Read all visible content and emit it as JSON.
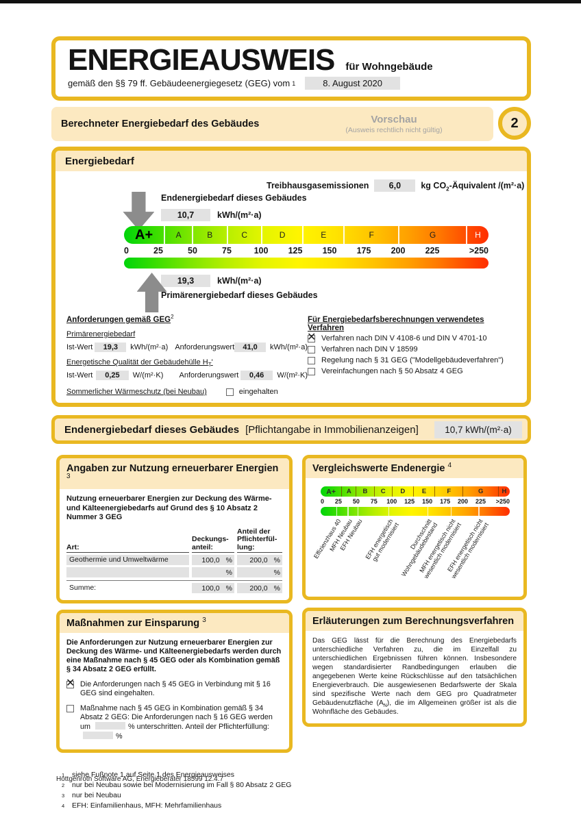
{
  "title": {
    "main": "ENERGIEAUSWEIS",
    "sub": "für Wohngebäude",
    "law_prefix": "gemäß den §§ 79 ff. Gebäudeenergiegesetz (GEG) vom",
    "law_footnote": "1",
    "date": "8. August 2020"
  },
  "preview": {
    "title": "Berechneter Energiebedarf des Gebäudes",
    "status": "Vorschau",
    "status_note": "(Ausweis rechtlich nicht gültig)",
    "page_number": "2"
  },
  "energy_section": {
    "header": "Energiebedarf",
    "ghg_label": "Treibhausgasemissionen",
    "ghg_value": "6,0",
    "ghg_unit_pre": "kg CO",
    "ghg_unit_sub": "2",
    "ghg_unit_post": "-Äquivalent /(m²·a)",
    "end_label": "Endenergiebedarf dieses Gebäudes",
    "end_value": "10,7",
    "end_unit": "kWh/(m²·a)",
    "primary_value": "19,3",
    "primary_unit": "kWh/(m²·a)",
    "primary_label": "Primärenergiebedarf dieses Gebäudes"
  },
  "scale": {
    "total": 266,
    "classes": [
      {
        "label": "A+",
        "span": 30
      },
      {
        "label": "A",
        "span": 20
      },
      {
        "label": "B",
        "span": 25
      },
      {
        "label": "C",
        "span": 25
      },
      {
        "label": "D",
        "span": 30
      },
      {
        "label": "E",
        "span": 30
      },
      {
        "label": "F",
        "span": 40
      },
      {
        "label": "G",
        "span": 50
      },
      {
        "label": "H",
        "span": 16
      }
    ],
    "tick_step": 25,
    "ticks": [
      "0",
      "25",
      "50",
      "75",
      "100",
      "125",
      "150",
      "175",
      "200",
      "225",
      ">250"
    ]
  },
  "requirements": {
    "heading": "Anforderungen gemäß GEG",
    "heading_footnote": "2",
    "primary_heading": "Primärenergiebedarf",
    "ist_label": "Ist-Wert",
    "primary_ist": "19,3",
    "primary_unit": "kWh/(m²·a)",
    "anf_label": "Anforderungswert",
    "primary_anf": "41,0",
    "envelope_heading_pre": "Energetische Qualität der Gebäudehülle H",
    "envelope_heading_sub": "T",
    "envelope_heading_post": "'",
    "envelope_ist": "0,25",
    "envelope_unit": "W/(m²·K)",
    "envelope_anf": "0,46",
    "summer_heading": "Sommerlicher Wärmeschutz (bei Neubau)",
    "summer_checkbox_label": "eingehalten",
    "summer_checked": false
  },
  "methods": {
    "heading": "Für Energiebedarfsberechnungen verwendetes Verfahren",
    "items": [
      {
        "label": "Verfahren nach DIN V 4108-6 und DIN V 4701-10",
        "checked": true
      },
      {
        "label": "Verfahren nach DIN V 18599",
        "checked": false
      },
      {
        "label": "Regelung nach § 31 GEG (\"Modellgebäudeverfahren\")",
        "checked": false
      },
      {
        "label": "Vereinfachungen nach § 50 Absatz 4 GEG",
        "checked": false
      }
    ]
  },
  "end_banner": {
    "title": "Endenergiebedarf dieses Gebäudes",
    "bracket": "[Pflichtangabe in Immobilienanzeigen]",
    "value": "10,7 kWh/(m²·a)"
  },
  "renewables": {
    "header": "Angaben zur Nutzung erneuerbarer Energien",
    "header_footnote": "3",
    "intro": "Nutzung erneuerbarer Energien zur Deckung des Wärme- und Kälteenergiebedarfs auf Grund des § 10 Absatz 2 Nummer 3 GEG",
    "col_art": "Art:",
    "col_deckung": [
      "Deckungs-",
      "anteil:"
    ],
    "col_anteil": [
      "Anteil der",
      "Pflichterfül-",
      "lung:"
    ],
    "pct": "%",
    "rows": [
      {
        "art": "Geothermie und Umweltwärme",
        "deckung": "100,0",
        "anteil": "200,0"
      },
      {
        "art": "",
        "deckung": "",
        "anteil": ""
      }
    ],
    "sum_label": "Summe:",
    "sum_deckung": "100,0",
    "sum_anteil": "200,0"
  },
  "measures": {
    "header": "Maßnahmen zur Einsparung",
    "header_footnote": "3",
    "intro": "Die Anforderungen zur Nutzung erneuerbarer Energien zur Deckung des Wärme- und Kälteenergiebedarfs werden durch eine Maßnahme nach § 45 GEG oder als Kombination gemäß § 34 Absatz 2 GEG erfüllt.",
    "item1": {
      "checked": true,
      "text": "Die Anforderungen nach § 45 GEG in Verbindung mit § 16 GEG sind eingehalten."
    },
    "item2": {
      "checked": false,
      "segments": [
        {
          "t": "Maßnahme nach § 45 GEG in Kombination gemäß § 34 Absatz 2 GEG: Die Anforderungen nach § 16 GEG werden um"
        },
        {
          "box": true
        },
        {
          "t": "% unterschritten. Anteil der Pflichterfüllung:"
        },
        {
          "box": true
        },
        {
          "t": "%"
        }
      ]
    }
  },
  "comparison": {
    "header": "Vergleichswerte Endenergie",
    "header_footnote": "4",
    "marks": [
      {
        "label": [
          "Effizienzhaus 40"
        ],
        "value": 22
      },
      {
        "label": [
          "MFH Neubau"
        ],
        "value": 38
      },
      {
        "label": [
          "EFH Neubau"
        ],
        "value": 52
      },
      {
        "label": [
          "EFH energetisch",
          "gut modernisiert"
        ],
        "value": 95
      },
      {
        "label": [
          "Durchschnitt",
          "Wohngebäudebestand"
        ],
        "value": 150
      },
      {
        "label": [
          "MFH energetisch nicht",
          "wesentlich modernisiert"
        ],
        "value": 183
      },
      {
        "label": [
          "EFH energetisch nicht",
          "wesentlich modernisiert"
        ],
        "value": 222
      }
    ]
  },
  "explanation": {
    "header": "Erläuterungen zum Berechnungsverfahren",
    "body_pre": "Das GEG lässt für die Berechnung des Energiebedarfs unterschiedliche Verfahren zu, die im Einzelfall zu unterschiedlichen Ergebnissen führen können. Insbesondere wegen standardisierter Randbedingungen erlauben die angegebenen Werte keine Rückschlüsse auf den tatsächlichen Energieverbrauch. Die ausgewiesenen Bedarfswerte der Skala sind spezifische Werte nach dem GEG pro Quadratmeter Gebäudenutzfläche (A",
    "body_sub": "N",
    "body_post": "), die im Allgemeinen größer ist als die Wohnfläche des Gebäudes."
  },
  "footnotes": [
    {
      "num": "1",
      "text": "siehe Fußnote 1 auf Seite 1 des Energieausweises"
    },
    {
      "num": "2",
      "text": "nur bei Neubau sowie bei Modernisierung im Fall § 80 Absatz 2 GEG"
    },
    {
      "num": "3",
      "text": "nur bei Neubau"
    },
    {
      "num": "4",
      "text": "EFH: Einfamilienhaus, MFH: Mehrfamilienhaus"
    }
  ],
  "footer": "Hottgenroth Software AG, Energieberater 18599 12.4.7",
  "icons": {
    "checkbox_checked_glyph": "✕"
  },
  "colors": {
    "gold": "#E9B821",
    "cream": "#FCE9C1",
    "gray_box": "#E2E2E2",
    "gray_text": "#A3A3A3",
    "arrow_gray": "#8C8C8C",
    "scale_green": "#00D40B",
    "scale_red": "#FF2E00"
  }
}
